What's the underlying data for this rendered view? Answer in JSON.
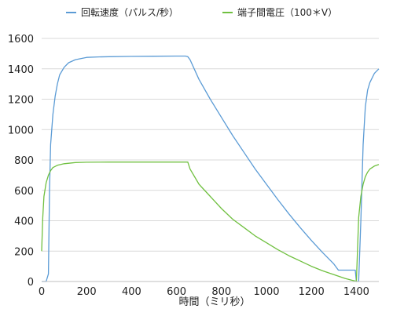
{
  "chart_data": {
    "type": "line",
    "xlabel": "時間（ミリ秒）",
    "ylabel": "",
    "xlim": [
      0,
      1500
    ],
    "ylim": [
      0,
      1600
    ],
    "x_ticks": [
      0,
      200,
      400,
      600,
      800,
      1000,
      1200,
      1400
    ],
    "y_ticks": [
      0,
      200,
      400,
      600,
      800,
      1000,
      1200,
      1400,
      1600
    ],
    "grid": "horizontal",
    "legend_position": "top",
    "series": [
      {
        "name": "回転速度（パルス/秒）",
        "color": "#5b9bd5",
        "x": [
          0,
          20,
          30,
          35,
          40,
          50,
          60,
          70,
          80,
          100,
          120,
          150,
          200,
          250,
          300,
          400,
          500,
          600,
          640,
          650,
          660,
          700,
          750,
          800,
          850,
          900,
          950,
          1000,
          1050,
          1100,
          1150,
          1200,
          1250,
          1300,
          1320,
          1350,
          1380,
          1395,
          1400,
          1410,
          1420,
          1430,
          1440,
          1450,
          1460,
          1480,
          1500
        ],
        "y": [
          0,
          0,
          50,
          600,
          900,
          1100,
          1220,
          1300,
          1360,
          1410,
          1440,
          1460,
          1475,
          1478,
          1480,
          1482,
          1483,
          1484,
          1484,
          1480,
          1460,
          1330,
          1200,
          1080,
          960,
          850,
          740,
          640,
          540,
          445,
          355,
          270,
          190,
          115,
          75,
          75,
          75,
          75,
          0,
          0,
          400,
          900,
          1150,
          1260,
          1310,
          1370,
          1400
        ]
      },
      {
        "name": "端子間電圧（100＊V）",
        "color": "#70c040",
        "x": [
          0,
          5,
          10,
          20,
          30,
          40,
          50,
          70,
          100,
          150,
          200,
          300,
          400,
          500,
          600,
          640,
          650,
          660,
          700,
          750,
          800,
          850,
          900,
          950,
          1000,
          1050,
          1100,
          1150,
          1200,
          1250,
          1300,
          1350,
          1380,
          1395,
          1400,
          1405,
          1410,
          1420,
          1430,
          1440,
          1450,
          1460,
          1480,
          1500
        ],
        "y": [
          200,
          420,
          560,
          650,
          700,
          730,
          750,
          765,
          775,
          783,
          785,
          786,
          786,
          786,
          786,
          786,
          786,
          740,
          640,
          560,
          480,
          410,
          355,
          300,
          255,
          210,
          170,
          135,
          100,
          70,
          45,
          20,
          8,
          3,
          0,
          200,
          420,
          560,
          640,
          690,
          720,
          740,
          760,
          770
        ]
      }
    ]
  }
}
